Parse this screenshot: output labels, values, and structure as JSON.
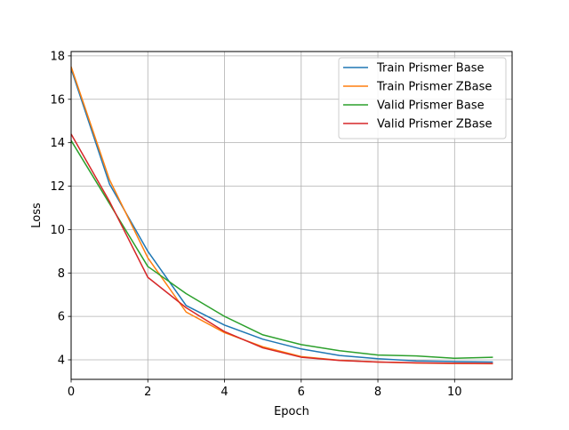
{
  "chart_data": {
    "type": "line",
    "title": "",
    "xlabel": "Epoch",
    "ylabel": "Loss",
    "xlim": [
      0,
      11.5
    ],
    "ylim": [
      3.1,
      18.2
    ],
    "x_ticks": [
      0,
      2,
      4,
      6,
      8,
      10
    ],
    "y_ticks": [
      4,
      6,
      8,
      10,
      12,
      14,
      16,
      18
    ],
    "grid": true,
    "legend_position": "top-right",
    "x": [
      0,
      1,
      2,
      3,
      4,
      5,
      6,
      7,
      8,
      9,
      10,
      11
    ],
    "series": [
      {
        "name": "Train Prismer Base",
        "color": "#1f77b4",
        "values": [
          17.4,
          12.1,
          9.0,
          6.5,
          5.6,
          4.95,
          4.5,
          4.2,
          4.05,
          3.95,
          3.92,
          3.9
        ]
      },
      {
        "name": "Train Prismer ZBase",
        "color": "#ff7f0e",
        "values": [
          17.5,
          12.3,
          8.7,
          6.2,
          5.25,
          4.6,
          4.15,
          3.98,
          3.9,
          3.85,
          3.83,
          3.82
        ]
      },
      {
        "name": "Valid Prismer Base",
        "color": "#2ca02c",
        "values": [
          14.1,
          11.2,
          8.3,
          7.05,
          6.0,
          5.15,
          4.7,
          4.42,
          4.22,
          4.18,
          4.07,
          4.12
        ]
      },
      {
        "name": "Valid Prismer ZBase",
        "color": "#d62728",
        "values": [
          14.4,
          11.3,
          7.8,
          6.4,
          5.3,
          4.55,
          4.12,
          3.97,
          3.9,
          3.86,
          3.84,
          3.83
        ]
      }
    ]
  }
}
